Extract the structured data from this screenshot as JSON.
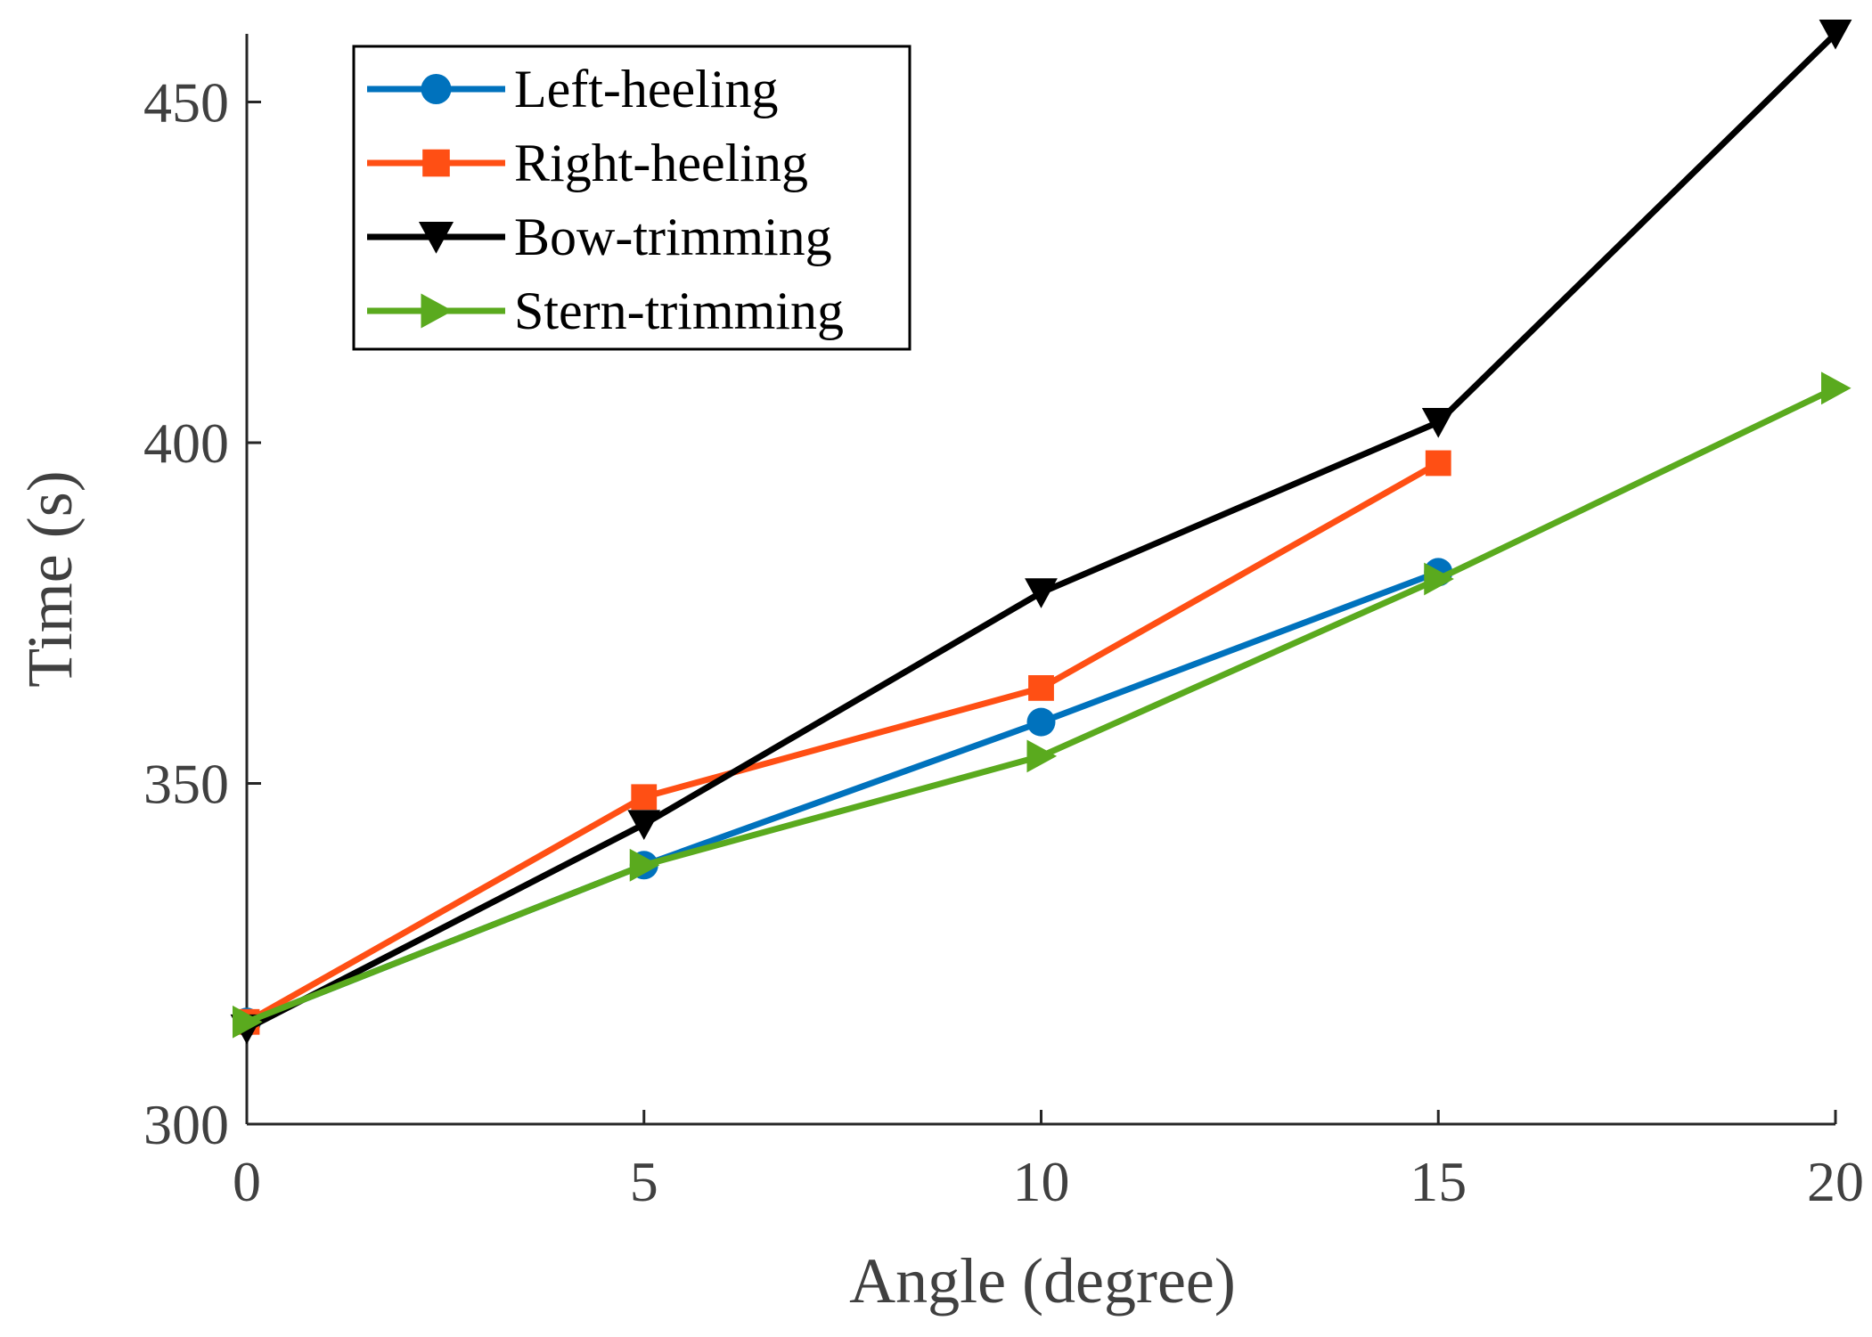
{
  "chart_data": {
    "type": "line",
    "title": "",
    "xlabel": "Angle (degree)",
    "ylabel": "Time (s)",
    "x": [
      0,
      5,
      10,
      15,
      20
    ],
    "xlim": [
      0,
      20
    ],
    "ylim": [
      300,
      460
    ],
    "xticks": [
      0,
      5,
      10,
      15,
      20
    ],
    "yticks": [
      300,
      350,
      400,
      450
    ],
    "legend_position": "top-left",
    "grid": false,
    "series": [
      {
        "name": "Left-heeling",
        "color": "#0072BD",
        "marker": "circle",
        "points": [
          [
            0,
            315
          ],
          [
            5,
            338
          ],
          [
            10,
            359
          ],
          [
            15,
            381
          ]
        ]
      },
      {
        "name": "Right-heeling",
        "color": "#FF4F14",
        "marker": "square",
        "points": [
          [
            0,
            315
          ],
          [
            5,
            348
          ],
          [
            10,
            364
          ],
          [
            15,
            397
          ]
        ]
      },
      {
        "name": "Bow-trimming",
        "color": "#000000",
        "marker": "triangle-down",
        "points": [
          [
            0,
            314
          ],
          [
            5,
            344
          ],
          [
            10,
            378
          ],
          [
            15,
            403
          ],
          [
            20,
            460
          ]
        ]
      },
      {
        "name": "Stern-trimming",
        "color": "#5AAA1E",
        "marker": "triangle-right",
        "points": [
          [
            0,
            315
          ],
          [
            5,
            338
          ],
          [
            10,
            354
          ],
          [
            15,
            380
          ],
          [
            20,
            408
          ]
        ]
      }
    ]
  }
}
